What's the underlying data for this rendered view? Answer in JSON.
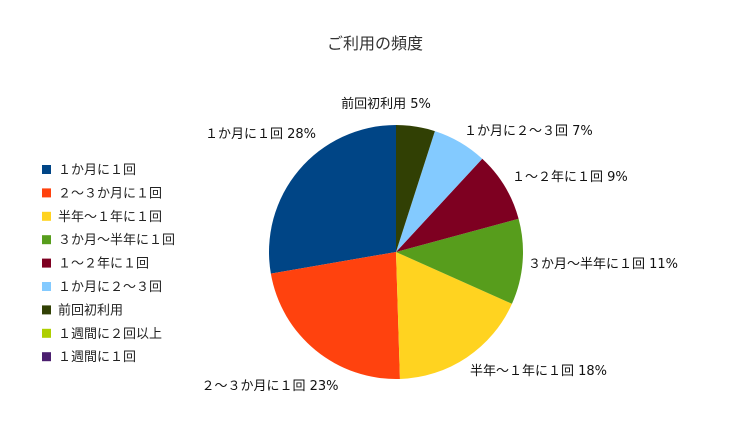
{
  "chart_data": {
    "type": "pie",
    "title": "ご利用の頻度",
    "legend_position": "left",
    "categories": [
      "１か月に１回",
      "２～３か月に１回",
      "半年～１年に１回",
      "３か月～半年に１回",
      "１～２年に１回",
      "１か月に２～３回",
      "前回初利用",
      "１週間に２回以上",
      "１週間に１回"
    ],
    "values": [
      28,
      23,
      18,
      11,
      9,
      7,
      5,
      0,
      0
    ],
    "colors": [
      "#004586",
      "#ff420e",
      "#ffd320",
      "#579d1c",
      "#7e0021",
      "#83caff",
      "#314004",
      "#aecf00",
      "#4b1f6f"
    ],
    "data_labels": [
      "１か月に１回 28%",
      "２～３か月に１回 23%",
      "半年～１年に１回 18%",
      "３か月～半年に１回 11%",
      "１～２年に１回 9%",
      "１か月に２～３回 7%",
      "前回初利用 5%",
      "",
      ""
    ]
  }
}
